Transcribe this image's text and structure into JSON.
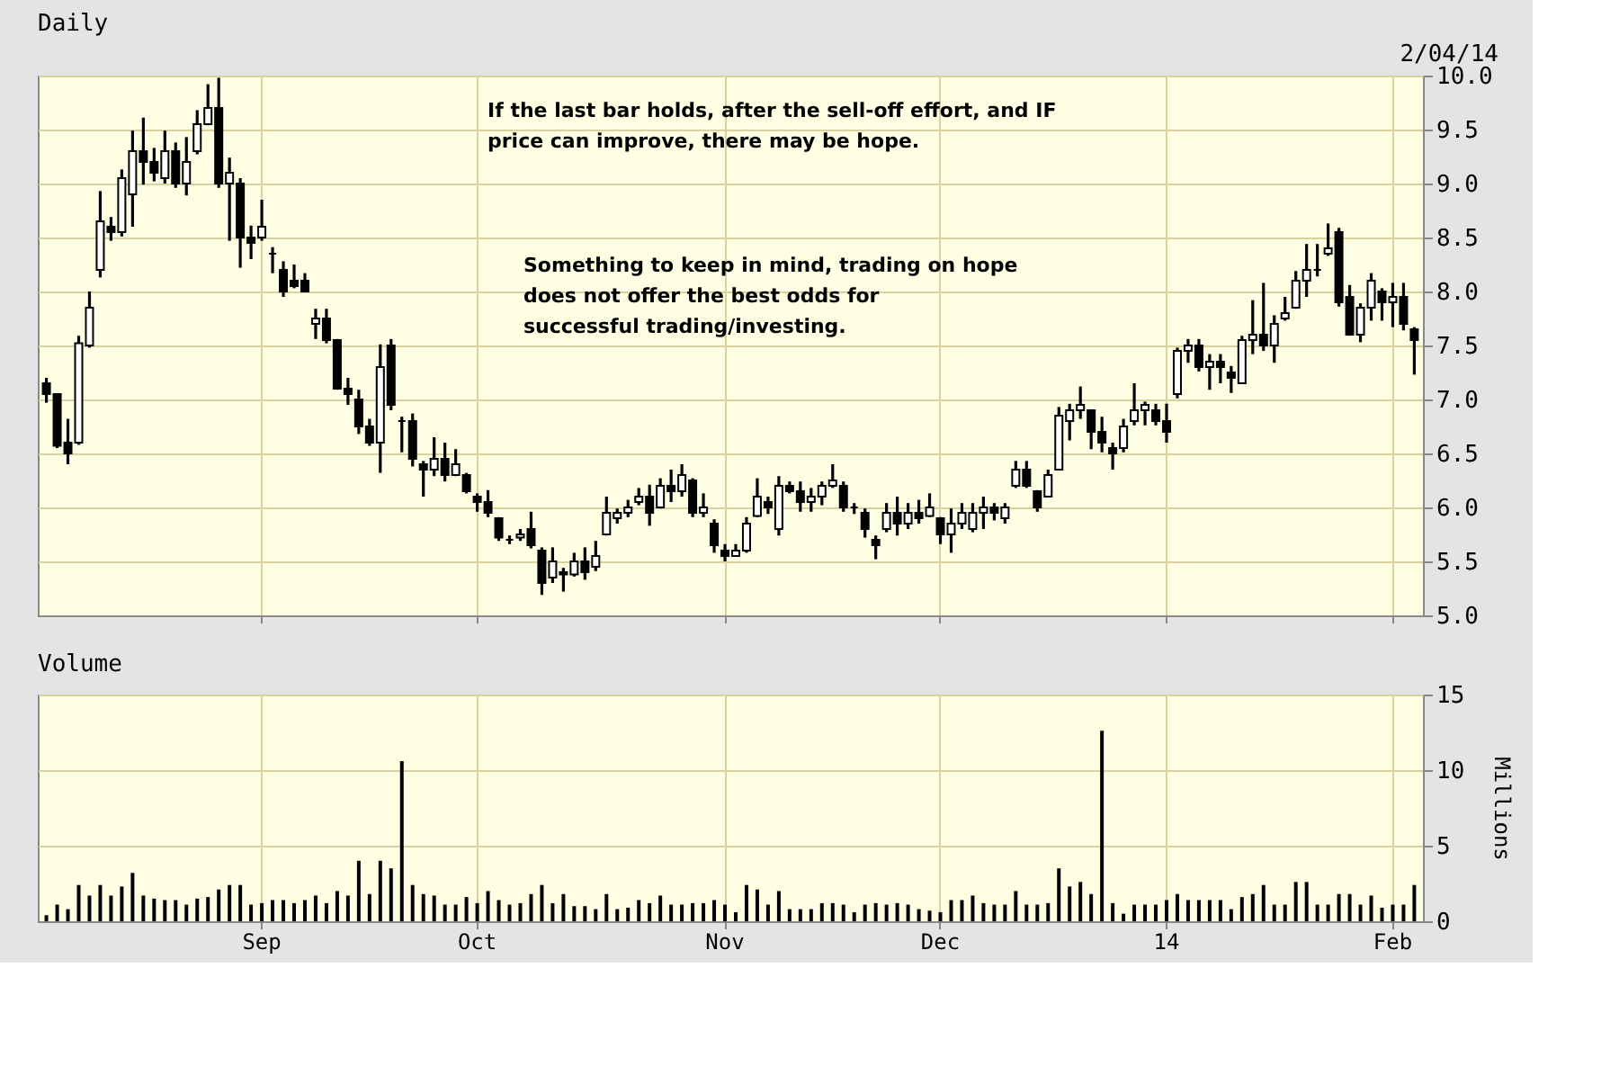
{
  "chart_data": [
    {
      "type": "candlestick",
      "title": "Daily",
      "annotations": [
        "2/04/14",
        "If the last bar holds, after the sell-off effort, and IF price can improve, there may be hope.",
        "Something to keep in mind, trading on hope does not offer the best odds for successful trading/investing."
      ],
      "categories": [
        null,
        null,
        null,
        null,
        null,
        null,
        null,
        null,
        null,
        null,
        null,
        null,
        null,
        null,
        null,
        null,
        null,
        null,
        null,
        null,
        null,
        null,
        null,
        null,
        null,
        null,
        null,
        null,
        null,
        null,
        null,
        null,
        null,
        null,
        null,
        null,
        null,
        null,
        null,
        null,
        null,
        null,
        null,
        null,
        null,
        null,
        null,
        null,
        null,
        null,
        null,
        null,
        null,
        null,
        null,
        null,
        null,
        null,
        null,
        null,
        null,
        null,
        null,
        null,
        null,
        null,
        null,
        null,
        null,
        null,
        null,
        null,
        null,
        null,
        null,
        null,
        null,
        null,
        null,
        null,
        null,
        null,
        null,
        null,
        null,
        null,
        null,
        null,
        null,
        null,
        null,
        null,
        null,
        null,
        null,
        null,
        null,
        null,
        null,
        null,
        null,
        null,
        null,
        null,
        null,
        null,
        null,
        null,
        null,
        null,
        null,
        null,
        null,
        null,
        null,
        null,
        null,
        null,
        null,
        null,
        null,
        null,
        null,
        null,
        null,
        null,
        null,
        null
      ],
      "ohlc": [
        [
          7.15,
          7.2,
          6.97,
          7.05
        ],
        [
          7.05,
          7.05,
          6.55,
          6.57
        ],
        [
          6.6,
          6.82,
          6.4,
          6.5
        ],
        [
          6.6,
          7.59,
          6.58,
          7.52
        ],
        [
          7.5,
          8.0,
          7.48,
          7.85
        ],
        [
          8.2,
          8.93,
          8.13,
          8.65
        ],
        [
          8.6,
          8.69,
          8.47,
          8.55
        ],
        [
          8.55,
          9.13,
          8.51,
          9.05
        ],
        [
          8.9,
          9.49,
          8.6,
          9.3
        ],
        [
          9.3,
          9.61,
          8.99,
          9.2
        ],
        [
          9.2,
          9.33,
          9.02,
          9.1
        ],
        [
          9.05,
          9.49,
          9.0,
          9.3
        ],
        [
          9.3,
          9.38,
          8.96,
          9.0
        ],
        [
          9.0,
          9.43,
          8.89,
          9.2
        ],
        [
          9.3,
          9.68,
          9.27,
          9.55
        ],
        [
          9.55,
          9.92,
          9.54,
          9.7
        ],
        [
          9.7,
          9.98,
          8.96,
          9.0
        ],
        [
          9.0,
          9.24,
          8.47,
          9.1
        ],
        [
          9.0,
          9.05,
          8.22,
          8.5
        ],
        [
          8.5,
          8.61,
          8.3,
          8.45
        ],
        [
          8.5,
          8.85,
          8.47,
          8.6
        ],
        [
          8.35,
          8.41,
          8.17,
          8.35
        ],
        [
          8.2,
          8.28,
          7.95,
          8.0
        ],
        [
          8.1,
          8.25,
          8.03,
          8.05
        ],
        [
          8.1,
          8.17,
          8.0,
          8.0
        ],
        [
          7.7,
          7.84,
          7.56,
          7.75
        ],
        [
          7.75,
          7.84,
          7.52,
          7.55
        ],
        [
          7.55,
          7.56,
          7.09,
          7.1
        ],
        [
          7.1,
          7.2,
          6.95,
          7.05
        ],
        [
          7.0,
          7.09,
          6.68,
          6.75
        ],
        [
          6.75,
          6.82,
          6.57,
          6.6
        ],
        [
          6.6,
          7.51,
          6.32,
          7.3
        ],
        [
          7.5,
          7.56,
          6.9,
          6.95
        ],
        [
          6.8,
          6.84,
          6.51,
          6.8
        ],
        [
          6.8,
          6.87,
          6.38,
          6.45
        ],
        [
          6.4,
          6.43,
          6.1,
          6.35
        ],
        [
          6.35,
          6.65,
          6.29,
          6.45
        ],
        [
          6.45,
          6.6,
          6.24,
          6.3
        ],
        [
          6.3,
          6.54,
          6.29,
          6.4
        ],
        [
          6.3,
          6.32,
          6.13,
          6.15
        ],
        [
          6.1,
          6.13,
          5.96,
          6.05
        ],
        [
          6.05,
          6.16,
          5.91,
          5.95
        ],
        [
          5.9,
          5.91,
          5.69,
          5.72
        ],
        [
          5.7,
          5.74,
          5.66,
          5.7
        ],
        [
          5.72,
          5.8,
          5.69,
          5.75
        ],
        [
          5.8,
          5.96,
          5.62,
          5.65
        ],
        [
          5.6,
          5.63,
          5.19,
          5.3
        ],
        [
          5.35,
          5.63,
          5.3,
          5.5
        ],
        [
          5.4,
          5.44,
          5.22,
          5.38
        ],
        [
          5.38,
          5.58,
          5.36,
          5.5
        ],
        [
          5.5,
          5.63,
          5.33,
          5.4
        ],
        [
          5.45,
          5.69,
          5.41,
          5.55
        ],
        [
          5.75,
          6.1,
          5.74,
          5.95
        ],
        [
          5.9,
          5.99,
          5.85,
          5.95
        ],
        [
          5.95,
          6.07,
          5.91,
          6.0
        ],
        [
          6.05,
          6.18,
          6.02,
          6.1
        ],
        [
          6.1,
          6.21,
          5.83,
          5.95
        ],
        [
          6.0,
          6.27,
          5.99,
          6.2
        ],
        [
          6.2,
          6.35,
          6.05,
          6.15
        ],
        [
          6.15,
          6.4,
          6.1,
          6.3
        ],
        [
          6.25,
          6.27,
          5.91,
          5.95
        ],
        [
          5.95,
          6.13,
          5.91,
          6.0
        ],
        [
          5.85,
          5.89,
          5.58,
          5.65
        ],
        [
          5.6,
          5.66,
          5.5,
          5.55
        ],
        [
          5.55,
          5.66,
          5.55,
          5.6
        ],
        [
          5.6,
          5.91,
          5.58,
          5.85
        ],
        [
          5.92,
          6.27,
          5.91,
          6.1
        ],
        [
          6.05,
          6.1,
          5.94,
          6.0
        ],
        [
          5.8,
          6.29,
          5.74,
          6.2
        ],
        [
          6.2,
          6.24,
          6.13,
          6.15
        ],
        [
          6.15,
          6.24,
          5.96,
          6.05
        ],
        [
          6.05,
          6.18,
          5.96,
          6.1
        ],
        [
          6.1,
          6.24,
          6.02,
          6.2
        ],
        [
          6.2,
          6.4,
          6.18,
          6.25
        ],
        [
          6.2,
          6.24,
          5.96,
          6.0
        ],
        [
          6.0,
          6.04,
          5.94,
          6.0
        ],
        [
          5.95,
          5.99,
          5.72,
          5.8
        ],
        [
          5.7,
          5.74,
          5.52,
          5.65
        ],
        [
          5.8,
          6.04,
          5.77,
          5.95
        ],
        [
          5.95,
          6.1,
          5.74,
          5.85
        ],
        [
          5.85,
          6.04,
          5.8,
          5.95
        ],
        [
          5.95,
          6.07,
          5.85,
          5.9
        ],
        [
          5.92,
          6.13,
          5.91,
          6.0
        ],
        [
          5.9,
          5.91,
          5.66,
          5.75
        ],
        [
          5.75,
          5.99,
          5.58,
          5.85
        ],
        [
          5.85,
          6.04,
          5.8,
          5.95
        ],
        [
          5.8,
          6.04,
          5.77,
          5.95
        ],
        [
          5.95,
          6.1,
          5.8,
          6.0
        ],
        [
          6.0,
          6.04,
          5.88,
          5.95
        ],
        [
          5.9,
          6.04,
          5.85,
          6.0
        ],
        [
          6.2,
          6.43,
          6.18,
          6.35
        ],
        [
          6.35,
          6.43,
          6.18,
          6.2
        ],
        [
          6.15,
          6.16,
          5.96,
          6.0
        ],
        [
          6.1,
          6.35,
          6.1,
          6.3
        ],
        [
          6.35,
          6.93,
          6.35,
          6.85
        ],
        [
          6.8,
          6.96,
          6.62,
          6.9
        ],
        [
          6.9,
          7.12,
          6.82,
          6.95
        ],
        [
          6.9,
          6.9,
          6.54,
          6.7
        ],
        [
          6.7,
          6.84,
          6.51,
          6.6
        ],
        [
          6.55,
          6.6,
          6.35,
          6.5
        ],
        [
          6.55,
          6.82,
          6.51,
          6.75
        ],
        [
          6.8,
          7.15,
          6.76,
          6.9
        ],
        [
          6.9,
          6.98,
          6.76,
          6.95
        ],
        [
          6.9,
          6.96,
          6.76,
          6.8
        ],
        [
          6.8,
          6.96,
          6.6,
          6.7
        ],
        [
          7.05,
          7.48,
          7.01,
          7.45
        ],
        [
          7.45,
          7.56,
          7.34,
          7.5
        ],
        [
          7.5,
          7.56,
          7.26,
          7.3
        ],
        [
          7.3,
          7.42,
          7.09,
          7.35
        ],
        [
          7.35,
          7.42,
          7.15,
          7.3
        ],
        [
          7.25,
          7.31,
          7.06,
          7.2
        ],
        [
          7.15,
          7.59,
          7.15,
          7.55
        ],
        [
          7.55,
          7.92,
          7.42,
          7.6
        ],
        [
          7.6,
          8.08,
          7.45,
          7.5
        ],
        [
          7.5,
          7.78,
          7.34,
          7.7
        ],
        [
          7.75,
          7.95,
          7.73,
          7.8
        ],
        [
          7.85,
          8.19,
          7.84,
          8.1
        ],
        [
          8.1,
          8.44,
          7.95,
          8.2
        ],
        [
          8.2,
          8.44,
          8.14,
          8.2
        ],
        [
          8.35,
          8.63,
          8.33,
          8.4
        ],
        [
          8.55,
          8.59,
          7.86,
          7.9
        ],
        [
          7.95,
          8.06,
          7.59,
          7.6
        ],
        [
          7.6,
          7.89,
          7.53,
          7.85
        ],
        [
          7.85,
          8.17,
          7.73,
          8.1
        ],
        [
          8.0,
          8.03,
          7.73,
          7.9
        ],
        [
          7.9,
          8.08,
          7.67,
          7.95
        ],
        [
          7.95,
          8.08,
          7.64,
          7.7
        ],
        [
          7.65,
          7.67,
          7.23,
          7.55
        ]
      ],
      "ylim": [
        5,
        10
      ],
      "yticks": [
        {
          "value": 5,
          "label": "5.0"
        },
        5.5,
        {
          "value": 6,
          "label": "6.0"
        },
        6.5,
        {
          "value": 7,
          "label": "7.0"
        },
        7.5,
        {
          "value": 8,
          "label": "8.0"
        },
        8.5,
        {
          "value": 9,
          "label": "9.0"
        },
        9.5,
        {
          "value": 10,
          "label": "10.0"
        }
      ],
      "grid": true,
      "tick_labels": "y"
    },
    {
      "type": "bar",
      "title": "Volume",
      "ylabel": "Millions",
      "categories": [
        null,
        null,
        null,
        null,
        null,
        null,
        null,
        null,
        null,
        null,
        null,
        null,
        null,
        null,
        null,
        null,
        null,
        null,
        null,
        null,
        "Sep",
        null,
        null,
        null,
        null,
        null,
        null,
        null,
        null,
        null,
        null,
        null,
        null,
        null,
        null,
        null,
        null,
        null,
        null,
        null,
        "Oct",
        null,
        null,
        null,
        null,
        null,
        null,
        null,
        null,
        null,
        null,
        null,
        null,
        null,
        null,
        null,
        null,
        null,
        null,
        null,
        null,
        null,
        null,
        "Nov",
        null,
        null,
        null,
        null,
        null,
        null,
        null,
        null,
        null,
        null,
        null,
        null,
        null,
        null,
        null,
        null,
        null,
        null,
        null,
        "Dec",
        null,
        null,
        null,
        null,
        null,
        null,
        null,
        null,
        null,
        null,
        null,
        null,
        null,
        null,
        null,
        null,
        null,
        null,
        null,
        null,
        "14",
        null,
        null,
        null,
        null,
        null,
        null,
        null,
        null,
        null,
        null,
        null,
        null,
        null,
        null,
        null,
        null,
        null,
        null,
        null,
        null,
        "Feb",
        null,
        null
      ],
      "series": [
        {
          "color": "#000000",
          "values": [
            0.4,
            1.1,
            0.8,
            2.4,
            1.7,
            2.4,
            1.7,
            2.3,
            3.2,
            1.7,
            1.5,
            1.4,
            1.4,
            1.1,
            1.5,
            1.6,
            2.1,
            2.4,
            2.4,
            1.1,
            1.2,
            1.4,
            1.4,
            1.2,
            1.4,
            1.7,
            1.2,
            2.0,
            1.7,
            4.0,
            1.8,
            4.0,
            3.5,
            10.6,
            2.4,
            1.8,
            1.7,
            1.1,
            1.1,
            1.6,
            1.2,
            2.0,
            1.4,
            1.1,
            1.2,
            1.8,
            2.4,
            1.2,
            1.8,
            1.0,
            1.0,
            0.8,
            1.8,
            0.8,
            0.9,
            1.4,
            1.2,
            1.7,
            1.1,
            1.1,
            1.2,
            1.2,
            1.4,
            1.1,
            0.6,
            2.4,
            2.1,
            1.1,
            2.0,
            0.8,
            0.8,
            0.8,
            1.2,
            1.2,
            1.1,
            0.6,
            1.1,
            1.2,
            1.1,
            1.2,
            1.1,
            0.8,
            0.7,
            0.6,
            1.4,
            1.4,
            1.7,
            1.2,
            1.1,
            1.1,
            2.0,
            1.1,
            1.1,
            1.2,
            3.5,
            2.3,
            2.6,
            1.8,
            12.6,
            1.2,
            0.5,
            1.1,
            1.1,
            1.1,
            1.4,
            1.8,
            1.4,
            1.4,
            1.4,
            1.4,
            0.8,
            1.6,
            1.8,
            2.4,
            1.1,
            1.1,
            2.6,
            2.6,
            1.1,
            1.1,
            1.8,
            1.8,
            1.1,
            1.7,
            0.9,
            1.1,
            1.1,
            2.4
          ]
        }
      ],
      "ylim": [
        0,
        15
      ],
      "yticks": [
        0,
        5,
        10,
        15
      ],
      "grid": true
    }
  ]
}
